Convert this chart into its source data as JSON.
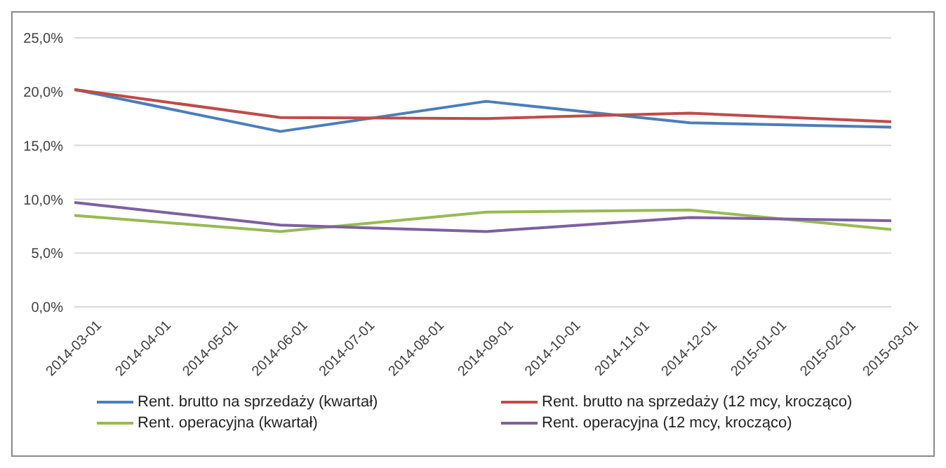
{
  "chart_data": {
    "type": "line",
    "x": [
      "2014-03-01",
      "2014-06-01",
      "2014-09-01",
      "2014-12-01",
      "2015-03-01"
    ],
    "series": [
      {
        "name": "Rent. brutto na sprzedaży (kwartał)",
        "color": "#4a7ebb",
        "values": [
          20.2,
          16.3,
          19.1,
          17.1,
          16.7
        ]
      },
      {
        "name": "Rent. brutto na sprzedaży (12 mcy, krocząco)",
        "color": "#be4b48",
        "values": [
          20.2,
          17.6,
          17.5,
          18.0,
          17.2
        ]
      },
      {
        "name": "Rent. operacyjna (kwartał)",
        "color": "#98b954",
        "values": [
          8.5,
          7.0,
          8.8,
          9.0,
          7.2
        ]
      },
      {
        "name": "Rent. operacyjna (12 mcy, krocząco)",
        "color": "#7d60a0",
        "values": [
          9.7,
          7.6,
          7.0,
          8.3,
          8.0
        ]
      }
    ],
    "xlim": [
      "2014-03-01",
      "2015-03-01"
    ],
    "xticks": [
      "2014-03-01",
      "2014-04-01",
      "2014-05-01",
      "2014-06-01",
      "2014-07-01",
      "2014-08-01",
      "2014-09-01",
      "2014-10-01",
      "2014-11-01",
      "2014-12-01",
      "2015-01-01",
      "2015-02-01",
      "2015-03-01"
    ],
    "ylim": [
      0,
      25
    ],
    "yticks": [
      {
        "value": 0,
        "label": "0,0%"
      },
      {
        "value": 5,
        "label": "5,0%"
      },
      {
        "value": 10,
        "label": "10,0%"
      },
      {
        "value": 15,
        "label": "15,0%"
      },
      {
        "value": 20,
        "label": "20,0%"
      },
      {
        "value": 25,
        "label": "25,0%"
      }
    ],
    "grid": "y",
    "legend": "bottom",
    "marker": "none",
    "line_style": "solid"
  }
}
